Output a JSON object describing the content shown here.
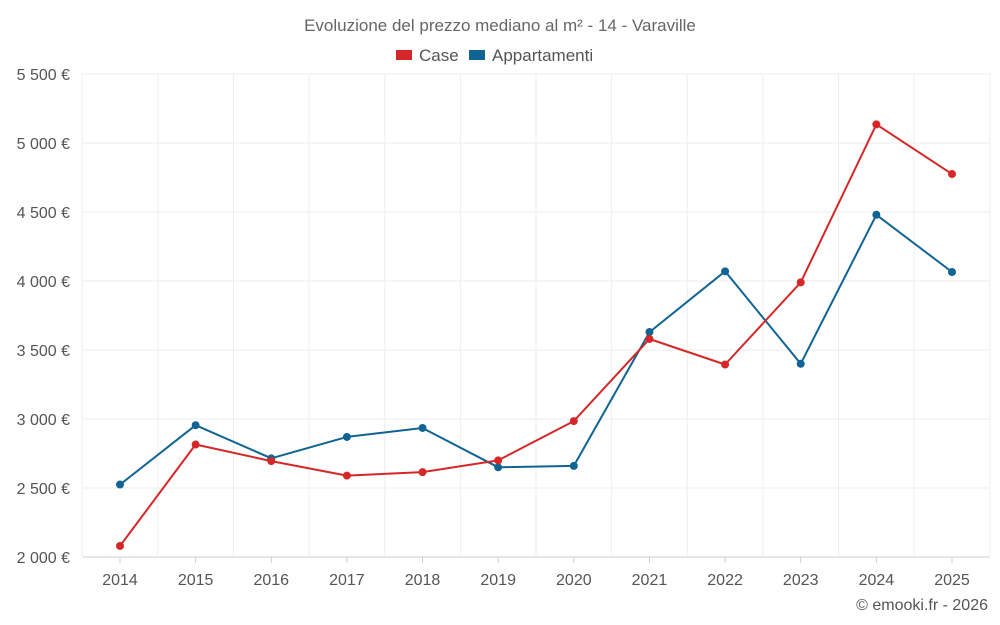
{
  "chart_data": {
    "type": "line",
    "title": "Evoluzione del prezzo mediano al m² - 14 - Varaville",
    "categories": [
      "2014",
      "2015",
      "2016",
      "2017",
      "2018",
      "2019",
      "2020",
      "2021",
      "2022",
      "2023",
      "2024",
      "2025"
    ],
    "series": [
      {
        "name": "Case",
        "color": "#d62728",
        "values": [
          2080,
          2815,
          2695,
          2590,
          2615,
          2700,
          2985,
          3580,
          3395,
          3990,
          5135,
          4775
        ]
      },
      {
        "name": "Appartamenti",
        "color": "#0f6494",
        "values": [
          2525,
          2955,
          2715,
          2870,
          2935,
          2650,
          2660,
          3630,
          4070,
          3400,
          4480,
          4065
        ]
      }
    ],
    "y_ticks": [
      2000,
      2500,
      3000,
      3500,
      4000,
      4500,
      5000,
      5500
    ],
    "y_tick_labels": [
      "2 000 €",
      "2 500 €",
      "3 000 €",
      "3 500 €",
      "4 000 €",
      "4 500 €",
      "5 000 €",
      "5 500 €"
    ],
    "ylim": [
      2000,
      5500
    ],
    "xlabel": "",
    "ylabel": "",
    "legend_position": "top-center",
    "grid": true
  },
  "credit": "© emooki.fr - 2026"
}
